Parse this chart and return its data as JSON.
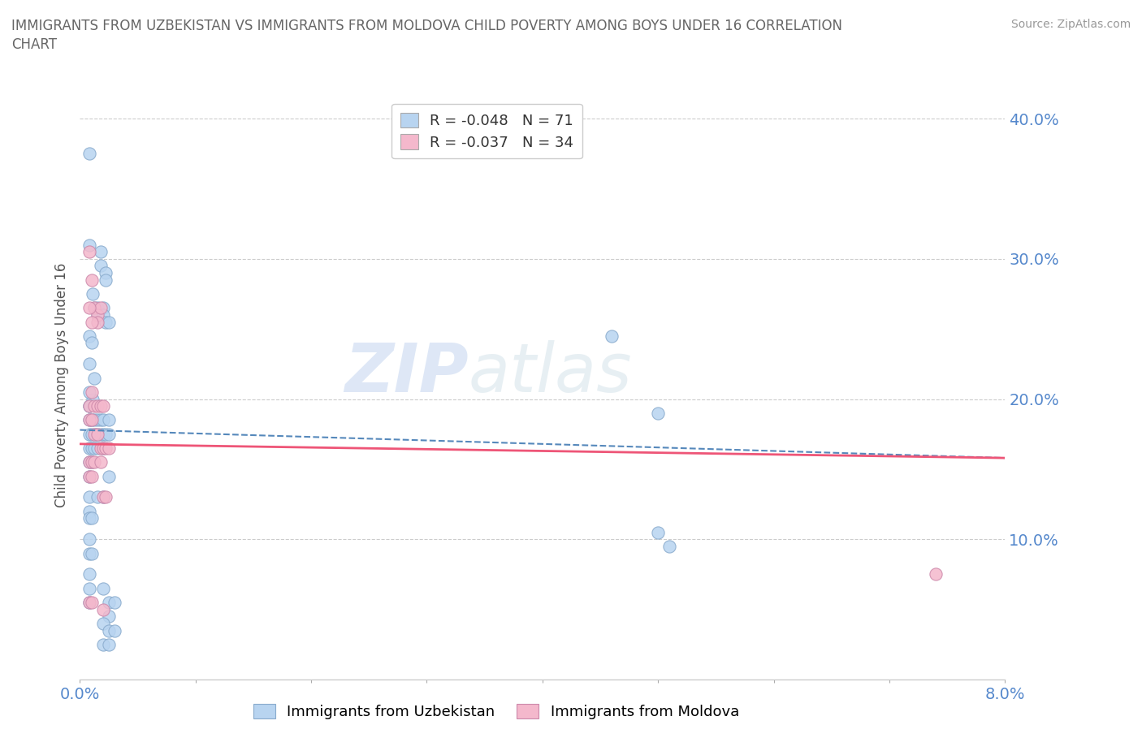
{
  "title_line1": "IMMIGRANTS FROM UZBEKISTAN VS IMMIGRANTS FROM MOLDOVA CHILD POVERTY AMONG BOYS UNDER 16 CORRELATION",
  "title_line2": "CHART",
  "source_text": "Source: ZipAtlas.com",
  "ylabel": "Child Poverty Among Boys Under 16",
  "xlim": [
    0.0,
    0.08
  ],
  "ylim": [
    0.0,
    0.42
  ],
  "yticks": [
    0.1,
    0.2,
    0.3,
    0.4
  ],
  "ytick_labels": [
    "10.0%",
    "20.0%",
    "30.0%",
    "40.0%"
  ],
  "xtick_labels_show": [
    "0.0%",
    "8.0%"
  ],
  "legend_entries": [
    {
      "label": "R = -0.048   N = 71",
      "color": "#b8d4f0"
    },
    {
      "label": "R = -0.037   N = 34",
      "color": "#f4b8cc"
    }
  ],
  "uzbekistan_color": "#b8d4f0",
  "uzbekistan_edge": "#88aacc",
  "moldova_color": "#f4b8cc",
  "moldova_edge": "#cc88aa",
  "uzbekistan_scatter": [
    [
      0.0008,
      0.375
    ],
    [
      0.0008,
      0.31
    ],
    [
      0.0011,
      0.275
    ],
    [
      0.0012,
      0.265
    ],
    [
      0.0018,
      0.305
    ],
    [
      0.0018,
      0.295
    ],
    [
      0.0022,
      0.29
    ],
    [
      0.0022,
      0.285
    ],
    [
      0.0008,
      0.245
    ],
    [
      0.001,
      0.24
    ],
    [
      0.0008,
      0.225
    ],
    [
      0.0008,
      0.195
    ],
    [
      0.0012,
      0.215
    ],
    [
      0.0011,
      0.2
    ],
    [
      0.0008,
      0.205
    ],
    [
      0.0008,
      0.195
    ],
    [
      0.0015,
      0.265
    ],
    [
      0.0015,
      0.26
    ],
    [
      0.002,
      0.265
    ],
    [
      0.002,
      0.26
    ],
    [
      0.0022,
      0.255
    ],
    [
      0.0025,
      0.255
    ],
    [
      0.0008,
      0.185
    ],
    [
      0.001,
      0.185
    ],
    [
      0.0012,
      0.185
    ],
    [
      0.0015,
      0.185
    ],
    [
      0.0018,
      0.185
    ],
    [
      0.002,
      0.185
    ],
    [
      0.0025,
      0.185
    ],
    [
      0.0008,
      0.175
    ],
    [
      0.001,
      0.175
    ],
    [
      0.0013,
      0.175
    ],
    [
      0.0015,
      0.175
    ],
    [
      0.0018,
      0.175
    ],
    [
      0.002,
      0.175
    ],
    [
      0.0022,
      0.175
    ],
    [
      0.0025,
      0.175
    ],
    [
      0.0008,
      0.165
    ],
    [
      0.001,
      0.165
    ],
    [
      0.0012,
      0.165
    ],
    [
      0.0015,
      0.165
    ],
    [
      0.002,
      0.165
    ],
    [
      0.0008,
      0.155
    ],
    [
      0.001,
      0.155
    ],
    [
      0.0008,
      0.145
    ],
    [
      0.0025,
      0.145
    ],
    [
      0.0008,
      0.13
    ],
    [
      0.0008,
      0.12
    ],
    [
      0.002,
      0.13
    ],
    [
      0.0015,
      0.13
    ],
    [
      0.0008,
      0.115
    ],
    [
      0.001,
      0.115
    ],
    [
      0.0008,
      0.1
    ],
    [
      0.0008,
      0.09
    ],
    [
      0.001,
      0.09
    ],
    [
      0.0008,
      0.075
    ],
    [
      0.0008,
      0.065
    ],
    [
      0.0008,
      0.055
    ],
    [
      0.002,
      0.065
    ],
    [
      0.0025,
      0.055
    ],
    [
      0.003,
      0.055
    ],
    [
      0.0025,
      0.045
    ],
    [
      0.002,
      0.04
    ],
    [
      0.0025,
      0.035
    ],
    [
      0.003,
      0.035
    ],
    [
      0.002,
      0.025
    ],
    [
      0.0025,
      0.025
    ],
    [
      0.046,
      0.245
    ],
    [
      0.05,
      0.19
    ],
    [
      0.05,
      0.105
    ],
    [
      0.051,
      0.095
    ]
  ],
  "moldova_scatter": [
    [
      0.0008,
      0.305
    ],
    [
      0.001,
      0.285
    ],
    [
      0.0012,
      0.265
    ],
    [
      0.0015,
      0.26
    ],
    [
      0.0018,
      0.265
    ],
    [
      0.0015,
      0.255
    ],
    [
      0.001,
      0.255
    ],
    [
      0.0008,
      0.265
    ],
    [
      0.0008,
      0.195
    ],
    [
      0.001,
      0.205
    ],
    [
      0.0012,
      0.195
    ],
    [
      0.0015,
      0.195
    ],
    [
      0.0018,
      0.195
    ],
    [
      0.002,
      0.195
    ],
    [
      0.0008,
      0.185
    ],
    [
      0.001,
      0.185
    ],
    [
      0.0012,
      0.175
    ],
    [
      0.0015,
      0.175
    ],
    [
      0.0018,
      0.165
    ],
    [
      0.002,
      0.165
    ],
    [
      0.0022,
      0.165
    ],
    [
      0.0025,
      0.165
    ],
    [
      0.0008,
      0.155
    ],
    [
      0.001,
      0.155
    ],
    [
      0.0012,
      0.155
    ],
    [
      0.0018,
      0.155
    ],
    [
      0.0008,
      0.145
    ],
    [
      0.001,
      0.145
    ],
    [
      0.002,
      0.13
    ],
    [
      0.0022,
      0.13
    ],
    [
      0.0008,
      0.055
    ],
    [
      0.001,
      0.055
    ],
    [
      0.002,
      0.05
    ],
    [
      0.074,
      0.075
    ]
  ],
  "uzbekistan_line": {
    "x": [
      0.0,
      0.08
    ],
    "y": [
      0.178,
      0.158
    ]
  },
  "moldova_line": {
    "x": [
      0.0,
      0.08
    ],
    "y": [
      0.168,
      0.158
    ]
  },
  "watermark_zip": "ZIP",
  "watermark_atlas": "atlas",
  "title_color": "#666666",
  "tick_color": "#5588cc",
  "grid_color": "#cccccc",
  "scatter_size": 120,
  "uzbekistan_line_color": "#5588bb",
  "moldova_line_color": "#ee5577",
  "bottom_legend": [
    {
      "label": "Immigrants from Uzbekistan",
      "color": "#b8d4f0",
      "edge": "#88aacc"
    },
    {
      "label": "Immigrants from Moldova",
      "color": "#f4b8cc",
      "edge": "#cc88aa"
    }
  ]
}
